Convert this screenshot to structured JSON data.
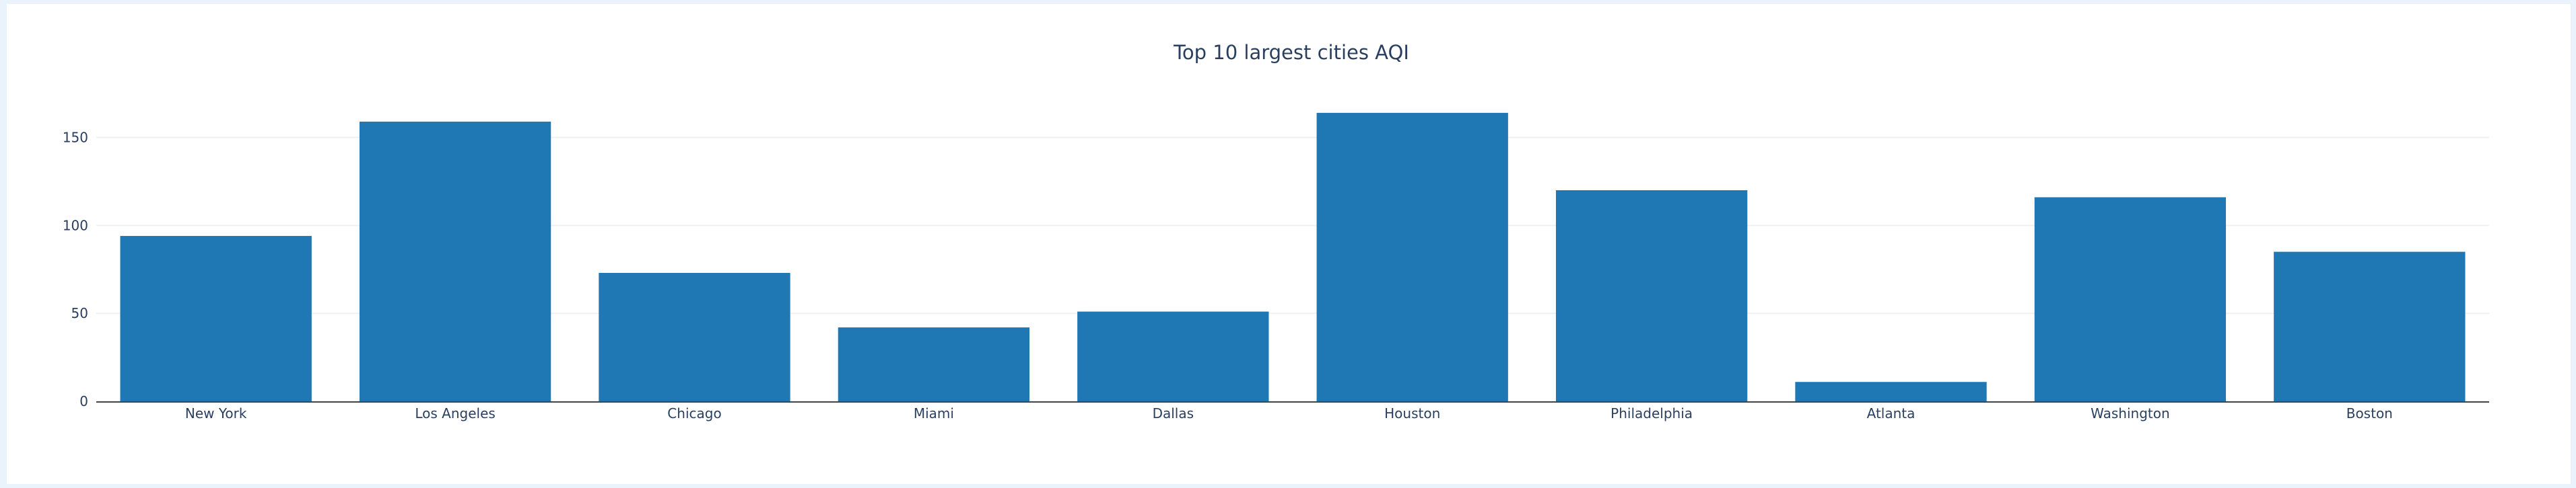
{
  "colors": {
    "bar": "#1f77b4",
    "grid": "#eef0f3",
    "axis": "#444444",
    "text": "#2a3f5f"
  },
  "chart_data": {
    "type": "bar",
    "title": "Top 10 largest cities AQI",
    "xlabel": "",
    "ylabel": "",
    "categories": [
      "New York",
      "Los Angeles",
      "Chicago",
      "Miami",
      "Dallas",
      "Houston",
      "Philadelphia",
      "Atlanta",
      "Washington",
      "Boston"
    ],
    "values": [
      94,
      159,
      73,
      42,
      51,
      164,
      120,
      11,
      116,
      85
    ],
    "ylim": [
      0,
      180
    ],
    "yticks": [
      0,
      50,
      100,
      150
    ],
    "grid": true,
    "legend": false
  }
}
